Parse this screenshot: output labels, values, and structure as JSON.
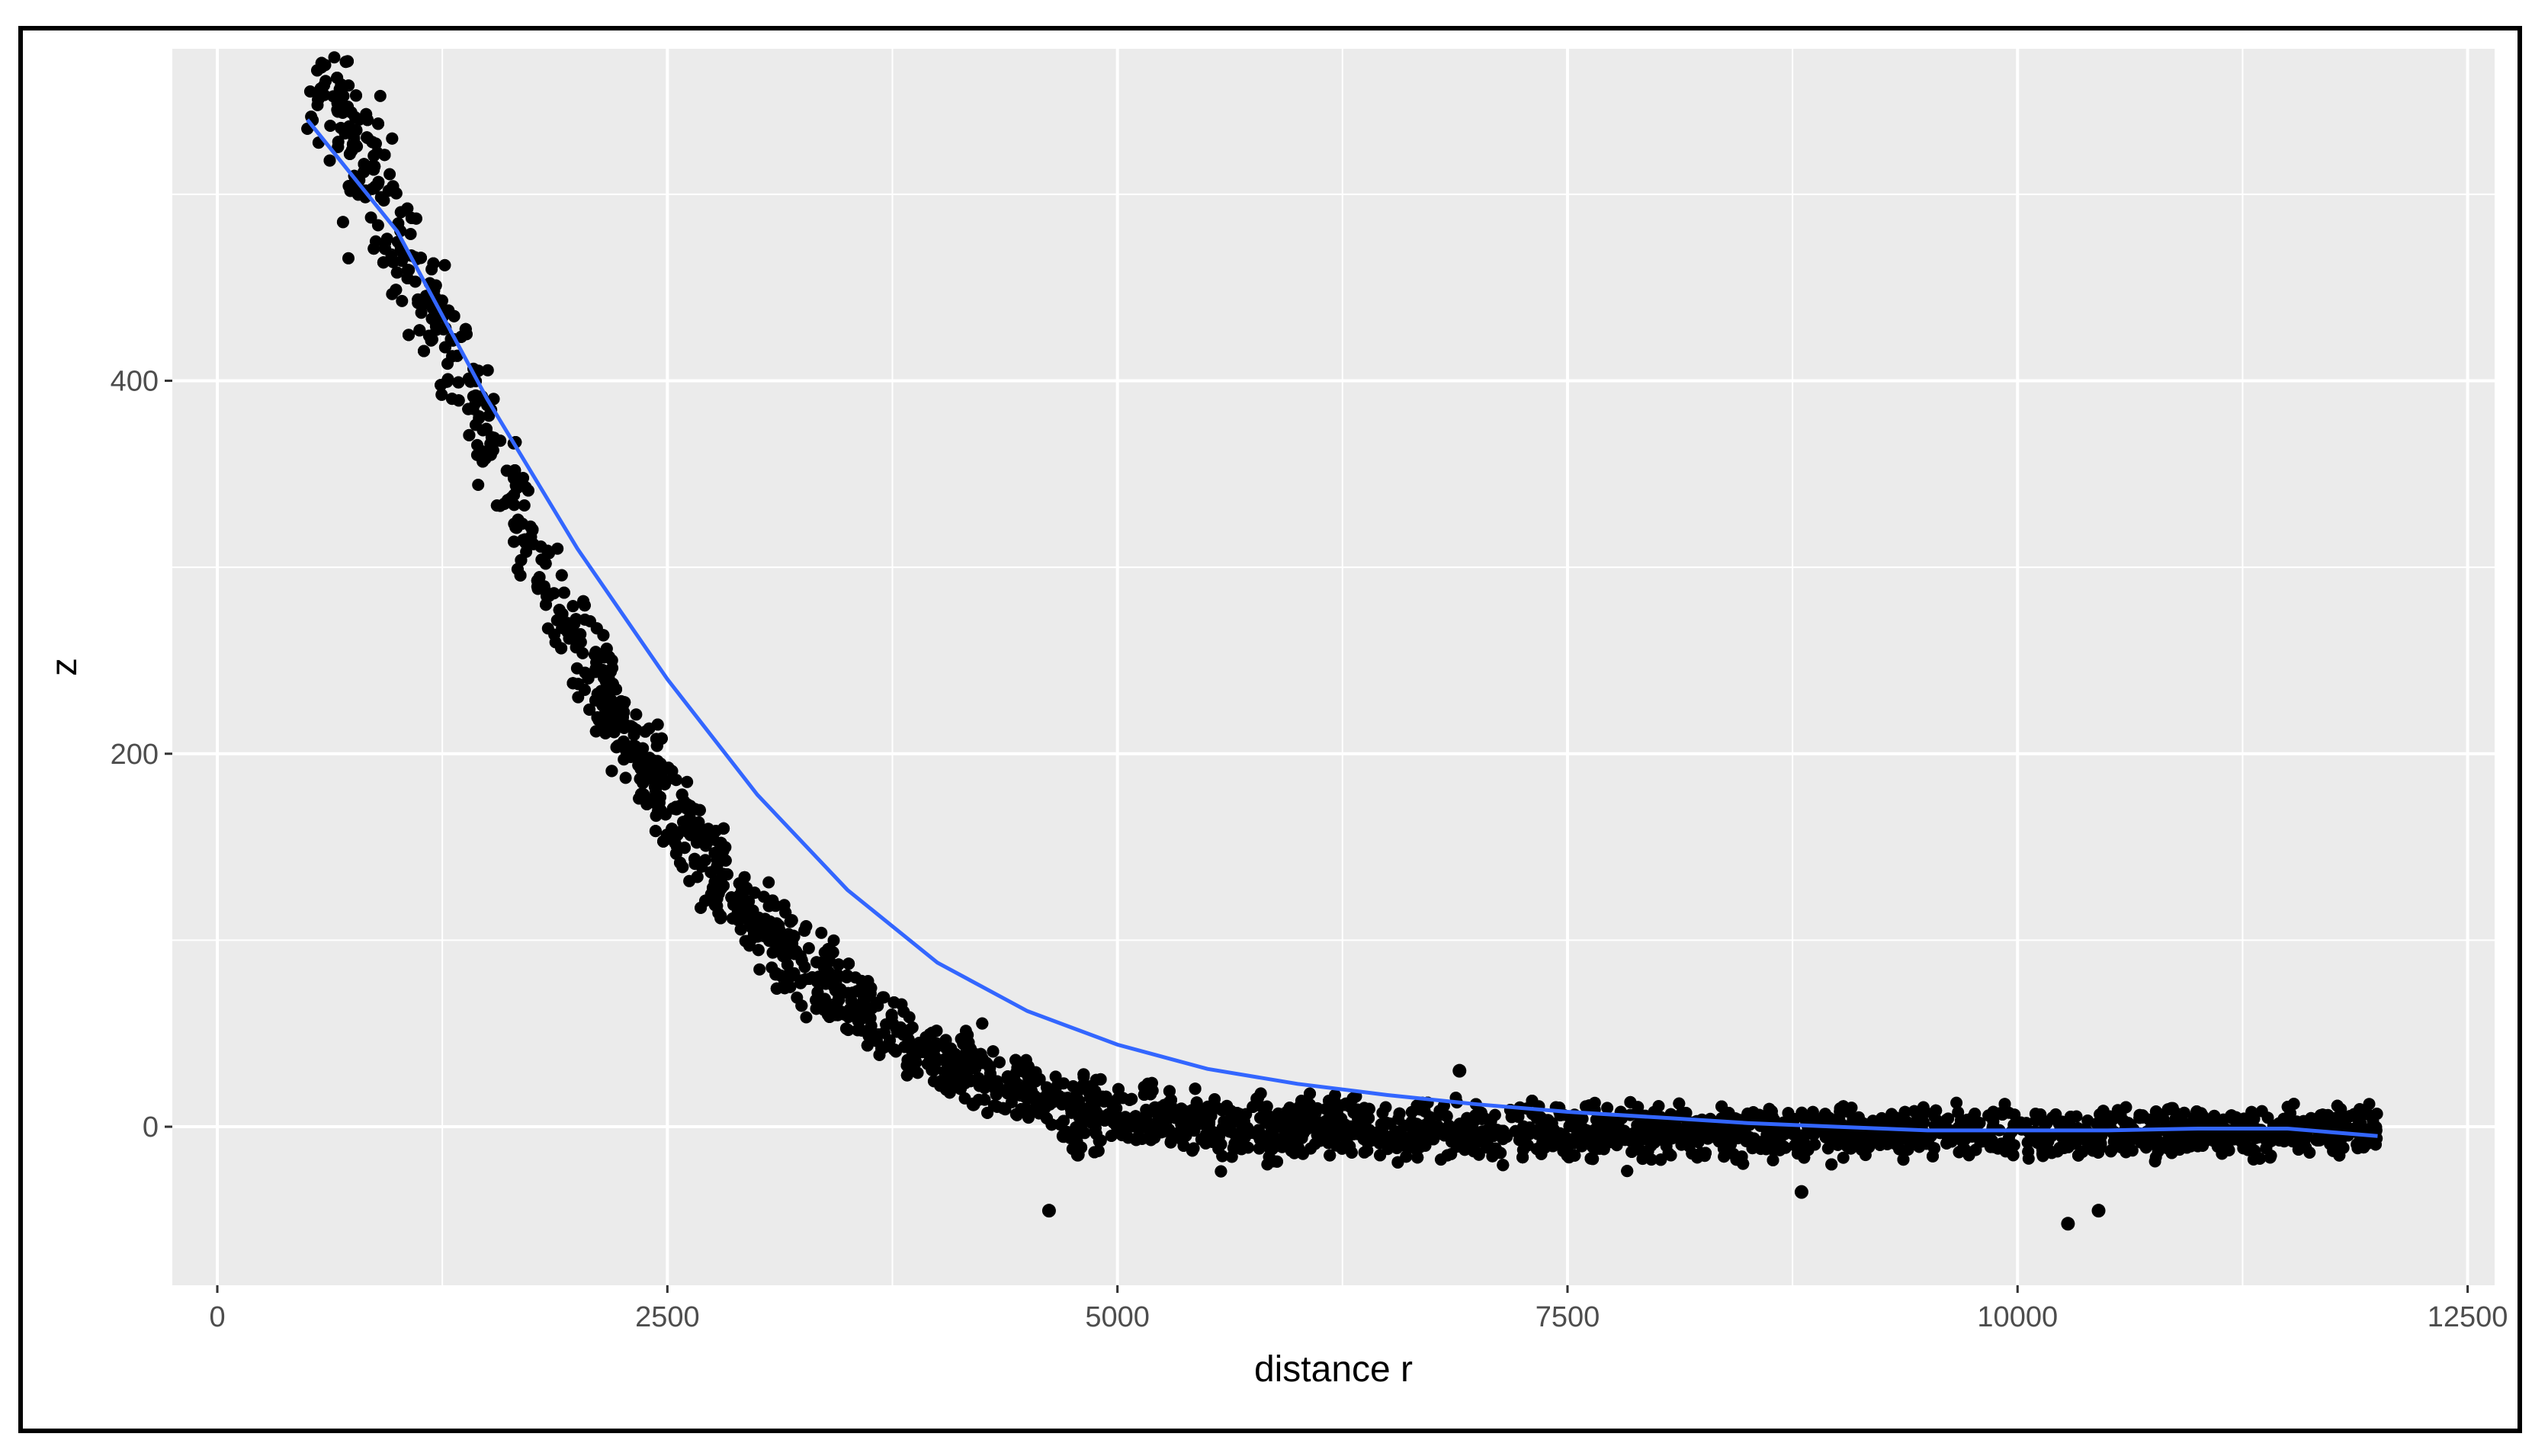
{
  "chart_data": {
    "type": "scatter",
    "title": "",
    "xlabel": "distance r",
    "ylabel": "z",
    "xlim": [
      -250,
      12650
    ],
    "ylim": [
      -85,
      578
    ],
    "x_ticks": [
      0,
      2500,
      5000,
      7500,
      10000,
      12500
    ],
    "x_tick_labels": [
      "0",
      "2500",
      "5000",
      "7500",
      "10000",
      "12500"
    ],
    "y_ticks": [
      0,
      200,
      400
    ],
    "y_tick_labels": [
      "0",
      "200",
      "400"
    ],
    "grid": true,
    "legend": "none",
    "colors": {
      "panel": "#ebebeb",
      "grid": "#ffffff",
      "points": "#000000",
      "smooth_line": "#3366ff",
      "tick_text": "#4d4d4d"
    },
    "series": [
      {
        "kind": "points",
        "x_range": [
          500,
          12000
        ],
        "trend": "approximately 550 * exp(-((r - 500) / 1800)^1.5)",
        "spread": "about ±25 near r=500, ±12 beyond r=5000",
        "outliers": [
          {
            "x": 4200,
            "y": 12
          },
          {
            "x": 4400,
            "y": 18
          },
          {
            "x": 4700,
            "y": -5
          },
          {
            "x": 4780,
            "y": -15
          },
          {
            "x": 4620,
            "y": -45
          },
          {
            "x": 3200,
            "y": 102
          },
          {
            "x": 6900,
            "y": 30
          },
          {
            "x": 10280,
            "y": -52
          },
          {
            "x": 10450,
            "y": -45
          },
          {
            "x": 8800,
            "y": -35
          }
        ]
      },
      {
        "kind": "smooth",
        "x": [
          500,
          1000,
          1500,
          2000,
          2500,
          3000,
          3500,
          4000,
          4500,
          5000,
          5500,
          6000,
          6500,
          7000,
          7500,
          8000,
          8500,
          9000,
          9500,
          10000,
          10500,
          11000,
          11500,
          12000
        ],
        "y": [
          540,
          480,
          390,
          310,
          240,
          178,
          127,
          88,
          62,
          44,
          31,
          23,
          17,
          12,
          8,
          5,
          2,
          0,
          -2,
          -2,
          -2,
          -1,
          -1,
          -5
        ]
      }
    ]
  }
}
